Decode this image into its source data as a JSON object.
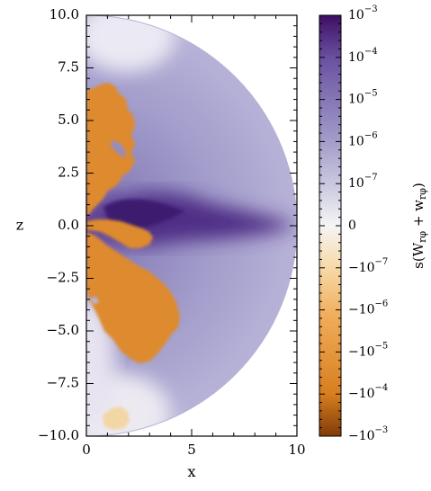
{
  "chart_data": {
    "type": "heatmap",
    "title": "",
    "xlabel": "x",
    "ylabel": "z",
    "xlim": [
      0,
      10
    ],
    "ylim": [
      -10,
      10
    ],
    "x_ticks": [
      "0",
      "5",
      "10"
    ],
    "y_ticks": [
      "10.0",
      "7.5",
      "5.0",
      "2.5",
      "0.0",
      "−2.5",
      "−5.0",
      "−7.5",
      "−10.0"
    ],
    "domain": "half-disk of radius 10 (x ≥ 0)",
    "colorbar": {
      "label_base": "s(W",
      "label_sub1": "rφ",
      "label_mid": " + w",
      "label_sub2": "rφ",
      "label_end": ")",
      "scale": "symlog",
      "ticks": [
        {
          "base": "10",
          "exp": "−3"
        },
        {
          "base": "10",
          "exp": "−4"
        },
        {
          "base": "10",
          "exp": "−5"
        },
        {
          "base": "10",
          "exp": "−6"
        },
        {
          "base": "10",
          "exp": "−7"
        },
        {
          "base": "0",
          "exp": ""
        },
        {
          "base": "−10",
          "exp": "−7"
        },
        {
          "base": "−10",
          "exp": "−6"
        },
        {
          "base": "−10",
          "exp": "−5"
        },
        {
          "base": "−10",
          "exp": "−4"
        },
        {
          "base": "−10",
          "exp": "−3"
        }
      ],
      "colors": {
        "pos_max": "#3d0e63",
        "pos_high": "#6a50a0",
        "pos_mid": "#9d95c5",
        "pos_low": "#c9c7e0",
        "zero": "#f5f5f5",
        "neg_low": "#f7d9a8",
        "neg_mid": "#f0ab58",
        "neg_high": "#d77e1f",
        "neg_max": "#7f3b08"
      }
    },
    "regions": [
      {
        "name": "negative-lobe-upper",
        "sign": "negative",
        "level": "~-10^-5"
      },
      {
        "name": "negative-lobe-equatorial",
        "sign": "negative",
        "level": "~-10^-5"
      },
      {
        "name": "negative-lobe-lower",
        "sign": "negative",
        "level": "~-10^-5"
      },
      {
        "name": "negative-blob-bottom",
        "sign": "negative",
        "level": "~-10^-7"
      },
      {
        "name": "positive-core",
        "sign": "positive",
        "level": "~10^-4"
      },
      {
        "name": "positive-background",
        "sign": "positive",
        "level": "~10^-6"
      }
    ]
  }
}
